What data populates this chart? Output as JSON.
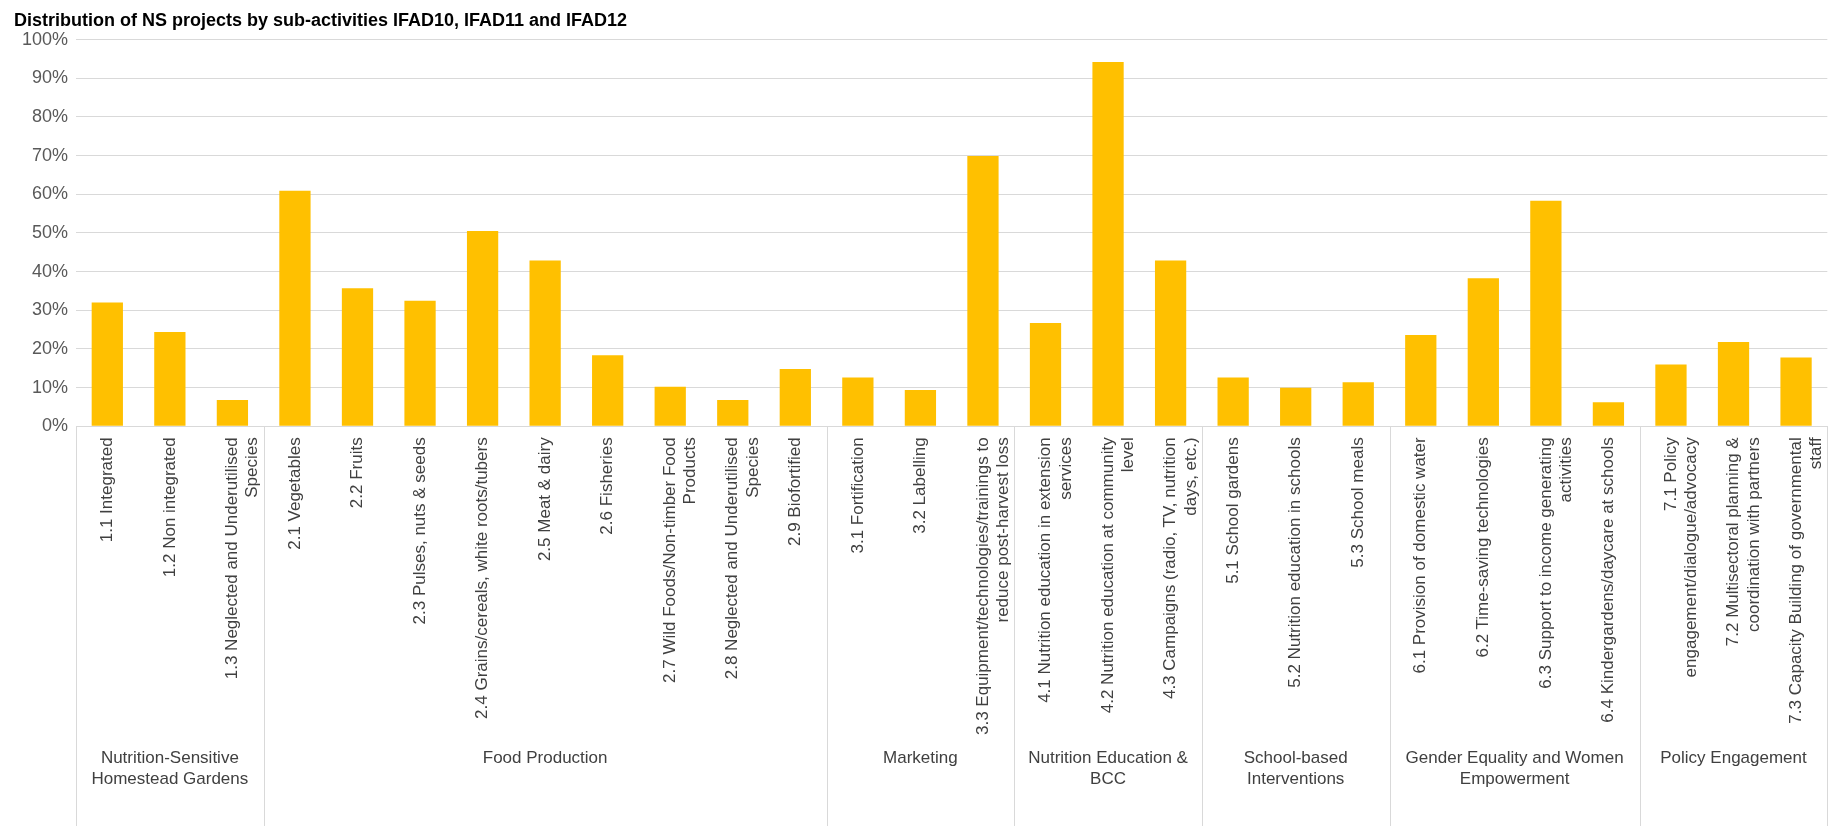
{
  "chart_data": {
    "type": "bar",
    "title": "Distribution of NS projects by sub-activities IFAD10, IFAD11 and IFAD12",
    "categories": [
      "1.1 Integrated",
      "1.2 Non integrated",
      "1.3 Neglected and Underutilised Species",
      "2.1 Vegetables",
      "2.2 Fruits",
      "2.3 Pulses, nuts & seeds",
      "2.4 Grains/cereals, white roots/tubers",
      "2.5 Meat & dairy",
      "2.6 Fisheries",
      "2.7 Wild Foods/Non-timber Food Products",
      "2.8 Neglected and Underutilised Species",
      "2.9 Biofortified",
      "3.1 Fortification",
      "3.2 Labelling",
      "3.3 Equipment/technologies/trainings to reduce post-harvest loss",
      "4.1 Nutrition education in extension services",
      "4.2 Nutrition education at community level",
      "4.3 Campaigns (radio, TV, nutrition days, etc.)",
      "5.1 School gardens",
      "5.2 Nutrition education in schools",
      "5.3 School meals",
      "6.1 Provision of domestic water",
      "6.2 Time-saving technologies",
      "6.3 Support to income generating activities",
      "6.4 Kindergardens/daycare at schools",
      "7.1 Policy engagement/dialogue/advocacy",
      "7.2 Multisectoral planning & coordination with partners",
      "7.3 Capacity Building of governmental staff"
    ],
    "values": [
      32,
      24.4,
      6.8,
      60.9,
      35.7,
      32.5,
      50.5,
      42.9,
      18.4,
      10.2,
      6.8,
      14.8,
      12.6,
      9.4,
      69.9,
      26.7,
      94.2,
      42.9,
      12.6,
      10,
      11.4,
      23.6,
      38.3,
      58.3,
      6.2,
      16,
      21.8,
      17.8
    ],
    "color": "#ffc000",
    "ylim": [
      0,
      100
    ],
    "yticks": [
      {
        "value": 0,
        "label": "0%"
      },
      {
        "value": 10,
        "label": "10%"
      },
      {
        "value": 20,
        "label": "20%"
      },
      {
        "value": 30,
        "label": "30%"
      },
      {
        "value": 40,
        "label": "40%"
      },
      {
        "value": 50,
        "label": "50%"
      },
      {
        "value": 60,
        "label": "60%"
      },
      {
        "value": 70,
        "label": "70%"
      },
      {
        "value": 80,
        "label": "80%"
      },
      {
        "value": 90,
        "label": "90%"
      },
      {
        "value": 100,
        "label": "100%"
      }
    ],
    "grid": "y",
    "legend": false,
    "annotations": [
      "Nutrition-Sensitive Homestead Gardens",
      "Food Production",
      "Marketing",
      "Nutrition Education & BCC",
      "School-based Interventions",
      "Gender Equality and Women Empowerment",
      "Policy Engagement"
    ]
  }
}
